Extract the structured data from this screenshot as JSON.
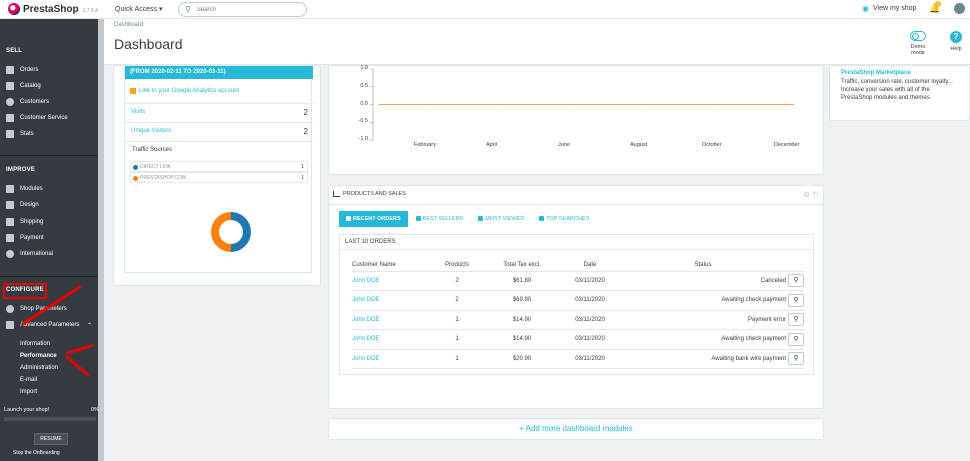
{
  "app": {
    "logo_text": "PrestaShop",
    "version": "1.7.6.4",
    "quick_access": "Quick Access ▾",
    "search_placeholder": "Search",
    "view_shop": "View my shop",
    "notification_count": "2"
  },
  "sidebar": {
    "sell_heading": "SELL",
    "sell_items": [
      "Orders",
      "Catalog",
      "Customers",
      "Customer Service",
      "Stats"
    ],
    "improve_heading": "IMPROVE",
    "improve_items": [
      "Modules",
      "Design",
      "Shipping",
      "Payment",
      "International"
    ],
    "configure_heading": "CONFIGURE",
    "configure_items": [
      "Shop Parameters",
      "Advanced Parameters"
    ],
    "advanced_subitems": [
      "Information",
      "Performance",
      "Administration",
      "E-mail",
      "Import"
    ],
    "active_subitem": "Performance",
    "launch_text": "Launch your shop!",
    "launch_pct": "0%",
    "resume_label": "RESUME",
    "stop_label": "Stop the OnBoarding"
  },
  "page": {
    "breadcrumb": "Dashboard",
    "title": "Dashboard",
    "demo_mode": "Demo mode",
    "help": "Help"
  },
  "analytics": {
    "header": "(FROM 2020-02-11 TO 2020-03-11)",
    "ga_link": "Link to your Google Analytics account",
    "visits_label": "Visits",
    "visits_value": "2",
    "unique_label": "Unique Visitors",
    "unique_value": "2",
    "traffic_title": "Traffic Sources",
    "sources": [
      {
        "name": "DIRECT LINK",
        "count": "1",
        "color": "#1f77b4"
      },
      {
        "name": "PRESTASHOP.COM",
        "count": "1",
        "color": "#ff7f0e"
      }
    ]
  },
  "chart_data": {
    "type": "line",
    "x": [
      "February",
      "April",
      "June",
      "August",
      "October",
      "December"
    ],
    "series": [
      {
        "values": [
          0,
          0,
          0,
          0,
          0,
          0
        ],
        "color": "#ff7f0e"
      }
    ],
    "ylim": [
      -1.0,
      1.0
    ],
    "yticks": [
      "1.0",
      "0.5",
      "0.0",
      "-0.5",
      "-1.0"
    ],
    "title": "",
    "xlabel": "",
    "ylabel": ""
  },
  "products_sales": {
    "title": "PRODUCTS AND SALES",
    "tabs": [
      "RECENT ORDERS",
      "BEST SELLERS",
      "MOST VIEWED",
      "TOP SEARCHES"
    ],
    "orders_title": "LAST 10 ORDERS",
    "columns": [
      "Customer Name",
      "Products",
      "Total Tax excl.",
      "Date",
      "Status"
    ],
    "rows": [
      {
        "customer": "John DOE",
        "products": "2",
        "total": "$61.80",
        "date": "03/11/2020",
        "status": "Canceled"
      },
      {
        "customer": "John DOE",
        "products": "2",
        "total": "$69.90",
        "date": "03/11/2020",
        "status": "Awaiting check payment"
      },
      {
        "customer": "John DOE",
        "products": "1",
        "total": "$14.90",
        "date": "03/11/2020",
        "status": "Payment error"
      },
      {
        "customer": "John DOE",
        "products": "1",
        "total": "$14.90",
        "date": "03/11/2020",
        "status": "Awaiting check payment"
      },
      {
        "customer": "John DOE",
        "products": "1",
        "total": "$20.90",
        "date": "03/11/2020",
        "status": "Awaiting bank wire payment"
      }
    ]
  },
  "add_modules": "+ Add more dashboard modules",
  "marketplace": {
    "title": "PrestaShop Marketplace",
    "text": "Traffic, conversion rate, customer loyalty... Increase your sales with all of the PrestaShop modules and themes"
  },
  "colors": {
    "accent": "#25b9d7",
    "sidebar": "#363a41",
    "highlight": "#ee0000"
  }
}
